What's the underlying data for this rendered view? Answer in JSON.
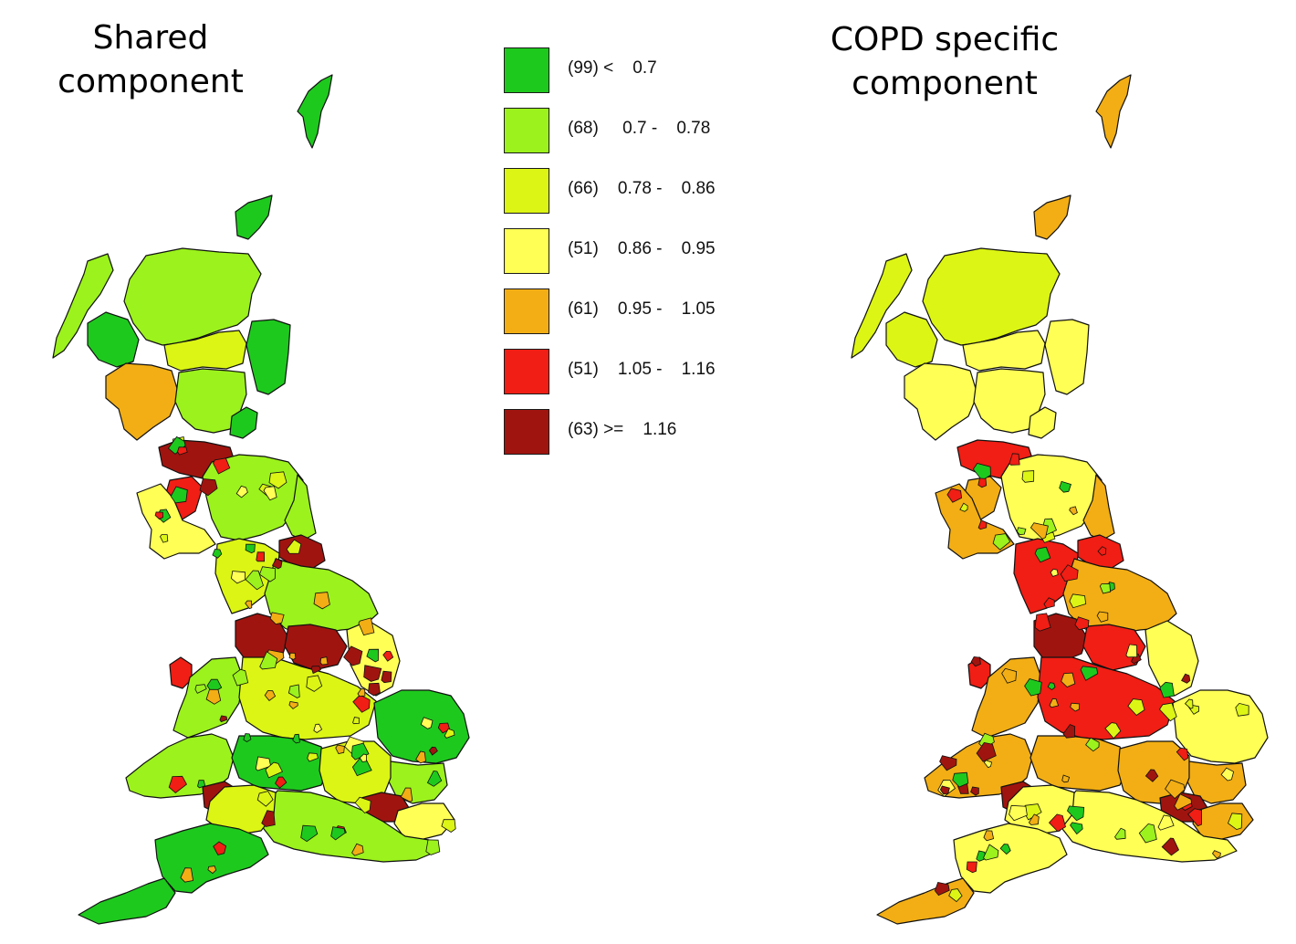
{
  "maps": {
    "left": {
      "title_line1": "Shared",
      "title_line2": "component"
    },
    "right": {
      "title_line1": "COPD specific",
      "title_line2": "component"
    }
  },
  "legend": {
    "classes": [
      {
        "label": "(99) <    0.7",
        "color": "#1ec91e"
      },
      {
        "label": "(68)     0.7 -    0.78",
        "color": "#9cf21c"
      },
      {
        "label": "(66)    0.78 -    0.86",
        "color": "#dcf514"
      },
      {
        "label": "(51)    0.86 -    0.95",
        "color": "#ffff55"
      },
      {
        "label": "(61)    0.95 -    1.05",
        "color": "#f2ae14"
      },
      {
        "label": "(51)    1.05 -    1.16",
        "color": "#f01e14"
      },
      {
        "label": "(63) >=    1.16",
        "color": "#a0140f"
      }
    ]
  },
  "region_colors": {
    "shared": {
      "shetland": "#1ec91e",
      "orkney": "#1ec91e",
      "hebrides": "#9cf21c",
      "highlands": "#9cf21c",
      "skye": "#1ec91e",
      "argyll": "#f2ae14",
      "grampian": "#1ec91e",
      "moray": "#dcf514",
      "perth": "#9cf21c",
      "fife": "#1ec91e",
      "glasgow": "#a0140f",
      "ayrshire": "#f01e14",
      "galloway": "#ffff55",
      "borders": "#9cf21c",
      "cumbria": "#dcf514",
      "northumbria": "#9cf21c",
      "tyneside": "#a0140f",
      "yorkshire": "#9cf21c",
      "lancs": "#a0140f",
      "wyorks": "#a0140f",
      "nwales": "#9cf21c",
      "anglesey": "#f01e14",
      "midlands": "#dcf514",
      "lincs": "#ffff55",
      "eastanglia": "#1ec91e",
      "swales": "#9cf21c",
      "valleys": "#a0140f",
      "cotswolds": "#1ec91e",
      "thames": "#dcf514",
      "london": "#a0140f",
      "kent": "#ffff55",
      "southcoast": "#9cf21c",
      "somerset": "#dcf514",
      "devon": "#1ec91e",
      "cornwall": "#1ec91e",
      "essex": "#9cf21c"
    },
    "copd": {
      "shetland": "#f2ae14",
      "orkney": "#f2ae14",
      "hebrides": "#dcf514",
      "highlands": "#dcf514",
      "skye": "#dcf514",
      "argyll": "#ffff55",
      "grampian": "#ffff55",
      "moray": "#ffff55",
      "perth": "#ffff55",
      "fife": "#ffff55",
      "glasgow": "#f01e14",
      "ayrshire": "#f2ae14",
      "galloway": "#f2ae14",
      "borders": "#ffff55",
      "cumbria": "#f01e14",
      "northumbria": "#f2ae14",
      "tyneside": "#f01e14",
      "yorkshire": "#f2ae14",
      "lancs": "#a0140f",
      "wyorks": "#f01e14",
      "nwales": "#f2ae14",
      "anglesey": "#f01e14",
      "midlands": "#f01e14",
      "lincs": "#ffff55",
      "eastanglia": "#ffff55",
      "swales": "#f2ae14",
      "valleys": "#a0140f",
      "cotswolds": "#f2ae14",
      "thames": "#f2ae14",
      "london": "#a0140f",
      "kent": "#f2ae14",
      "southcoast": "#ffff55",
      "somerset": "#ffff55",
      "devon": "#ffff55",
      "cornwall": "#f2ae14",
      "essex": "#f2ae14"
    }
  }
}
